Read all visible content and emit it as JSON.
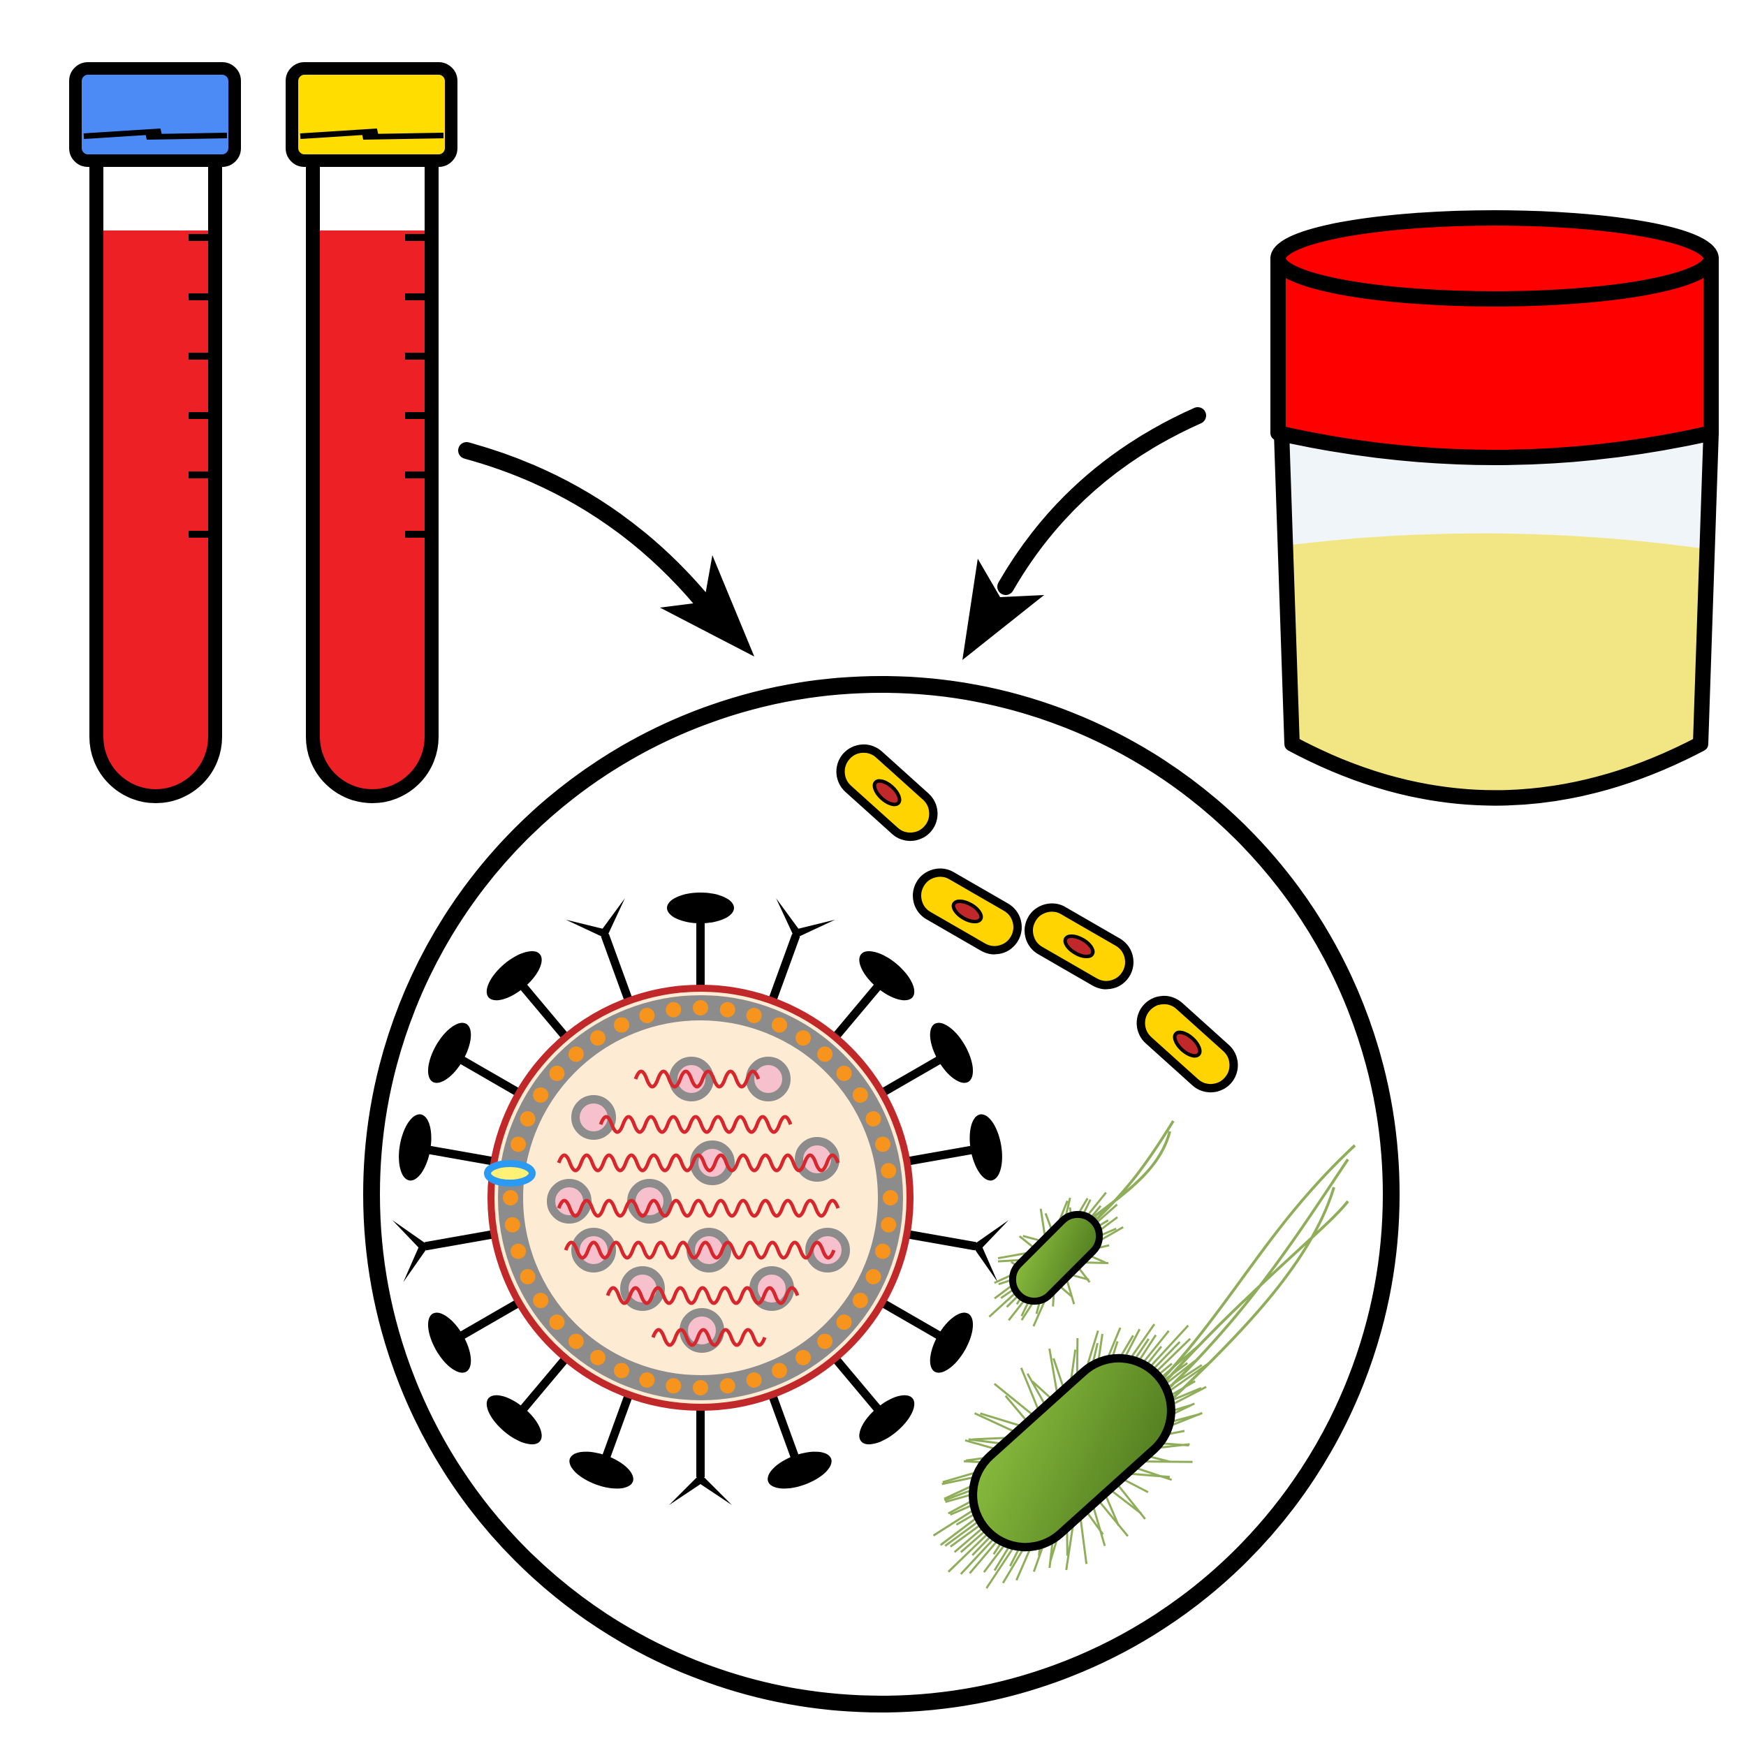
{
  "colors": {
    "outline": "#000000",
    "blood": "#ED2026",
    "cap_blue": "#4C8BF5",
    "cap_yellow": "#FFDD00",
    "cup_lid": "#FF0000",
    "cup_glass": "#F0F5FA",
    "urine": "#F2E684",
    "virus_core": "#FDEBD3",
    "virus_rim": "#C0282A",
    "virus_membrane_gray": "#8C8C8C",
    "virus_membrane_orange": "#F7941D",
    "virus_rna": "#D7262C",
    "virus_pink": "#F6C1CC",
    "virus_blue_marker": "#2B9AF3",
    "bacilli_yellow": "#FFD400",
    "bacteria_green_light": "#8CBF3F",
    "bacteria_green_dark": "#4F7A1E",
    "flagella_green": "#8FAE5A"
  },
  "icons": [
    "blood-tube-blue-cap-icon",
    "blood-tube-yellow-cap-icon",
    "urine-sample-cup-icon",
    "arrow-icon",
    "magnified-view-circle-icon",
    "coronavirus-icon",
    "bacilli-chain-icon",
    "flagellated-bacterium-icon"
  ]
}
